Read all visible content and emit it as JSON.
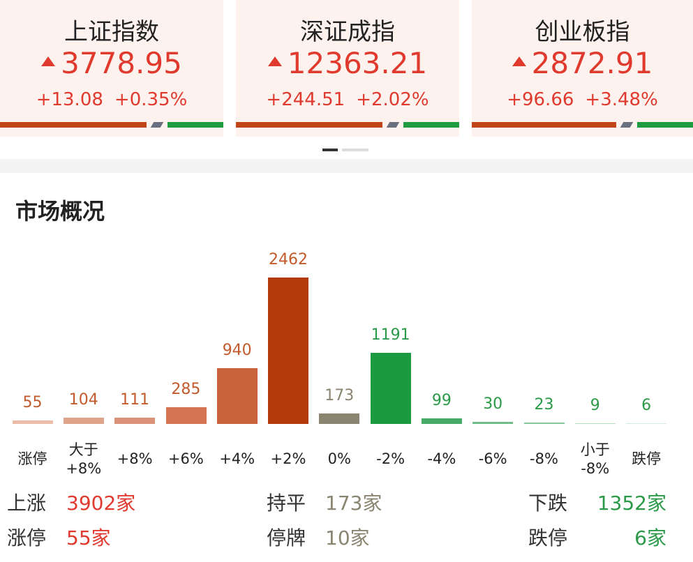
{
  "indices": [
    {
      "name": "上证指数",
      "value": "3778.95",
      "change": "+13.08",
      "percent": "+0.35%"
    },
    {
      "name": "深证成指",
      "value": "12363.21",
      "change": "+244.51",
      "percent": "+2.02%"
    },
    {
      "name": "创业板指",
      "value": "2872.91",
      "change": "+96.66",
      "percent": "+3.48%"
    }
  ],
  "section_title": "市场概况",
  "chart_data": {
    "type": "bar",
    "categories": [
      "涨停",
      "大于\n+8%",
      "+8%",
      "+6%",
      "+4%",
      "+2%",
      "0%",
      "-2%",
      "-4%",
      "-6%",
      "-8%",
      "小于\n-8%",
      "跌停"
    ],
    "values": [
      55,
      104,
      111,
      285,
      940,
      2462,
      173,
      1191,
      99,
      30,
      23,
      9,
      6
    ],
    "colors": [
      "#ebbcaa",
      "#e0a48c",
      "#da9378",
      "#d47552",
      "#c8613c",
      "#b23a0c",
      "#8a8570",
      "#1c9a40",
      "#47aa66",
      "#72be8a",
      "#86c89b",
      "#b3dbbf",
      "#d3ebda"
    ],
    "label_colors": [
      "#c25a2c",
      "#c25a2c",
      "#c25a2c",
      "#c25a2c",
      "#c25a2c",
      "#c25a2c",
      "#8a8570",
      "#2a9a48",
      "#2a9a48",
      "#2a9a48",
      "#2a9a48",
      "#2a9a48",
      "#2a9a48"
    ]
  },
  "summary": [
    [
      {
        "label": "上涨",
        "value": "3902家"
      },
      {
        "label": "持平",
        "value": "173家"
      },
      {
        "label": "下跌",
        "value": "1352家"
      }
    ],
    [
      {
        "label": "涨停",
        "value": "55家"
      },
      {
        "label": "停牌",
        "value": "10家"
      },
      {
        "label": "跌停",
        "value": "6家"
      }
    ]
  ]
}
